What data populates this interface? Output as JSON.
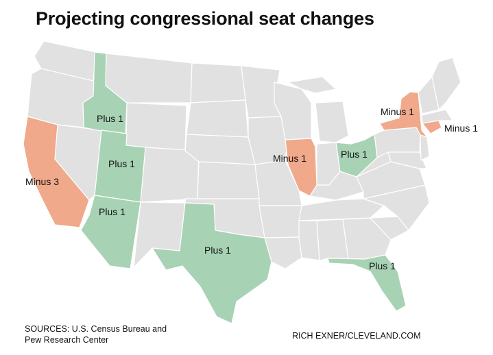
{
  "title": "Projecting congressional seat changes",
  "colors": {
    "gain": "#a8d2b4",
    "loss": "#f0a98a",
    "neutral": "#e1e1e1",
    "border": "#ffffff"
  },
  "regions": [
    {
      "state": "Idaho",
      "change": 1,
      "label": "Plus 1"
    },
    {
      "state": "Utah",
      "change": 1,
      "label": "Plus 1"
    },
    {
      "state": "Arizona",
      "change": 1,
      "label": "Plus 1"
    },
    {
      "state": "Texas",
      "change": 1,
      "label": "Plus 1"
    },
    {
      "state": "Ohio",
      "change": 1,
      "label": "Plus 1"
    },
    {
      "state": "Florida",
      "change": 1,
      "label": "Plus 1"
    },
    {
      "state": "California",
      "change": -3,
      "label": "Minus 3"
    },
    {
      "state": "Illinois",
      "change": -1,
      "label": "Minus 1"
    },
    {
      "state": "New York",
      "change": -1,
      "label": "Minus 1"
    },
    {
      "state": "Connecticut",
      "change": -1,
      "label": "Minus 1"
    }
  ],
  "footer": {
    "sources_line1": "SOURCES: U.S. Census Bureau and",
    "sources_line2": "Pew Research Center",
    "byline": "RICH EXNER/CLEVELAND.COM"
  }
}
